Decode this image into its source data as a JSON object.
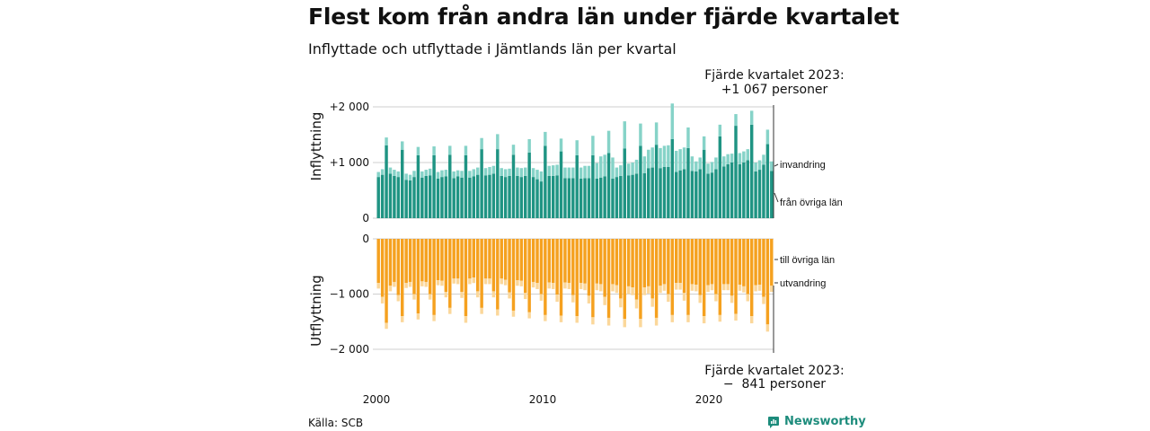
{
  "title": "Flest kom från andra län under fjärde kvartalet",
  "subtitle": "Inflyttade och utflyttade i Jämtlands län per kvartal",
  "source": "Källa: SCB",
  "logo": {
    "text": "Newsworthy",
    "icon": "chart-bubble-icon"
  },
  "colors": {
    "inflow_domestic": "#1f9483",
    "inflow_immigration": "#86d3c8",
    "outflow_domestic": "#f5a11f",
    "outflow_emigration": "#fbd79a"
  },
  "annotations": {
    "top_line1": "Fjärde kvartalet 2023:",
    "top_line2": "+1 067 personer",
    "bottom_line1": "Fjärde kvartalet 2023:",
    "bottom_line2": "−  841 personer"
  },
  "chart_data": [
    {
      "type": "bar",
      "stacked": true,
      "ylabel": "Inflyttning",
      "ylim": [
        0,
        2000
      ],
      "yticks": [
        0,
        1000,
        2000
      ],
      "ytick_labels": [
        "0",
        "+1 000",
        "+2 000"
      ],
      "xticks": [
        "2000",
        "2010",
        "2020"
      ],
      "series_labels": [
        "från övriga län",
        "invandring"
      ],
      "domestic": [
        740,
        780,
        1310,
        800,
        760,
        740,
        1230,
        690,
        680,
        740,
        1130,
        730,
        760,
        770,
        1130,
        710,
        740,
        750,
        1140,
        720,
        750,
        730,
        1130,
        730,
        750,
        780,
        1240,
        770,
        780,
        800,
        1240,
        760,
        740,
        760,
        1140,
        760,
        740,
        760,
        1180,
        740,
        700,
        660,
        1300,
        760,
        760,
        770,
        1200,
        720,
        720,
        720,
        1130,
        710,
        720,
        720,
        1130,
        710,
        730,
        750,
        1170,
        710,
        740,
        760,
        1250,
        770,
        780,
        800,
        1300,
        810,
        900,
        910,
        1320,
        900,
        920,
        920,
        1420,
        830,
        860,
        880,
        1260,
        850,
        840,
        880,
        1230,
        800,
        820,
        880,
        1470,
        930,
        970,
        1000,
        1660,
        970,
        1000,
        1040,
        1680,
        840,
        870,
        960,
        1330,
        850
      ],
      "immigration": [
        90,
        100,
        140,
        110,
        110,
        100,
        150,
        110,
        100,
        110,
        150,
        110,
        110,
        120,
        160,
        120,
        120,
        120,
        160,
        120,
        110,
        120,
        170,
        120,
        130,
        130,
        200,
        130,
        140,
        140,
        270,
        140,
        140,
        130,
        180,
        150,
        160,
        150,
        240,
        160,
        170,
        180,
        250,
        180,
        190,
        190,
        230,
        190,
        190,
        190,
        270,
        200,
        220,
        220,
        350,
        280,
        380,
        390,
        400,
        380,
        170,
        190,
        490,
        210,
        220,
        250,
        400,
        300,
        330,
        360,
        400,
        360,
        380,
        390,
        640,
        380,
        380,
        390,
        370,
        260,
        180,
        210,
        240,
        180,
        190,
        210,
        210,
        180,
        180,
        160,
        210,
        200,
        200,
        200,
        250,
        160,
        170,
        180,
        260,
        170
      ]
    },
    {
      "type": "bar",
      "stacked": true,
      "ylabel": "Utflyttning",
      "ylim": [
        -2000,
        0
      ],
      "yticks": [
        0,
        -1000,
        -2000
      ],
      "ytick_labels": [
        "0",
        "−1 000",
        "−2 000"
      ],
      "xticks": [
        "2000",
        "2010",
        "2020"
      ],
      "series_labels": [
        "till övriga län",
        "utvandring"
      ],
      "domestic": [
        -800,
        -1050,
        -1520,
        -850,
        -780,
        -1020,
        -1400,
        -800,
        -780,
        -1000,
        -1350,
        -770,
        -780,
        -1000,
        -1380,
        -750,
        -760,
        -960,
        -1250,
        -720,
        -720,
        -960,
        -1400,
        -720,
        -700,
        -950,
        -1250,
        -720,
        -720,
        -950,
        -1280,
        -720,
        -740,
        -970,
        -1300,
        -750,
        -760,
        -980,
        -1330,
        -780,
        -800,
        -1000,
        -1380,
        -790,
        -800,
        -1010,
        -1390,
        -790,
        -800,
        -1020,
        -1400,
        -800,
        -810,
        -1030,
        -1420,
        -810,
        -820,
        -1050,
        -1430,
        -820,
        -840,
        -1080,
        -1450,
        -860,
        -880,
        -1100,
        -1450,
        -880,
        -860,
        -1080,
        -1430,
        -850,
        -820,
        -1000,
        -1380,
        -800,
        -800,
        -980,
        -1380,
        -820,
        -830,
        -1020,
        -1400,
        -840,
        -820,
        -1000,
        -1380,
        -820,
        -820,
        -1030,
        -1360,
        -830,
        -860,
        -1000,
        -1400,
        -840,
        -830,
        -1050,
        -1550,
        -850
      ],
      "emigration": [
        -100,
        -120,
        -110,
        -100,
        -90,
        -110,
        -110,
        -90,
        -90,
        -100,
        -110,
        -90,
        -90,
        -100,
        -110,
        -90,
        -90,
        -100,
        -110,
        -90,
        -100,
        -110,
        -120,
        -100,
        -100,
        -110,
        -110,
        -100,
        -100,
        -110,
        -110,
        -100,
        -100,
        -110,
        -110,
        -100,
        -100,
        -110,
        -110,
        -100,
        -110,
        -120,
        -110,
        -110,
        -110,
        -130,
        -120,
        -110,
        -110,
        -130,
        -120,
        -110,
        -120,
        -140,
        -130,
        -120,
        -130,
        -150,
        -140,
        -130,
        -140,
        -160,
        -150,
        -140,
        -140,
        -160,
        -150,
        -140,
        -130,
        -150,
        -140,
        -130,
        -120,
        -140,
        -130,
        -120,
        -120,
        -140,
        -130,
        -120,
        -120,
        -140,
        -130,
        -120,
        -110,
        -130,
        -120,
        -110,
        -110,
        -130,
        -120,
        -110,
        -110,
        -130,
        -130,
        -110,
        -110,
        -130,
        -130,
        -110
      ]
    }
  ]
}
